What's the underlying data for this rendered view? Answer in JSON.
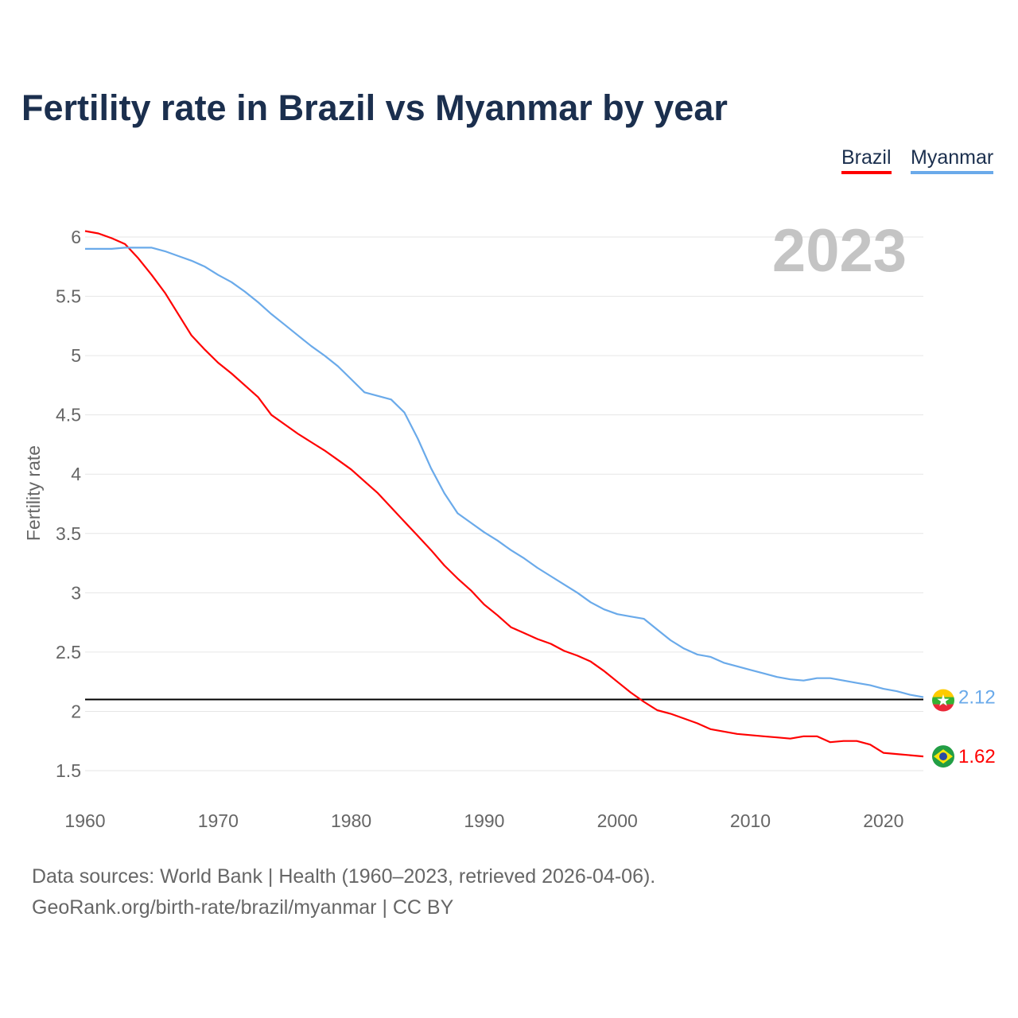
{
  "title": "Fertility rate in Brazil vs Myanmar by year",
  "footer": {
    "line1": "Data sources: World Bank | Health (1960–2023, retrieved 2026-04-06).",
    "line2": "GeoRank.org/birth-rate/brazil/myanmar | CC BY"
  },
  "chart_data": {
    "type": "line",
    "title": "Fertility rate in Brazil vs Myanmar by year",
    "year_label": "2023",
    "xlabel": "",
    "ylabel": "Fertility rate",
    "xlim": [
      1960,
      2023
    ],
    "ylim": [
      1.5,
      6
    ],
    "xticks": [
      1960,
      1970,
      1980,
      1990,
      2000,
      2010,
      2020
    ],
    "yticks": [
      1.5,
      2,
      2.5,
      3,
      3.5,
      4,
      4.5,
      5,
      5.5,
      6
    ],
    "ytick_labels": [
      "1.5",
      "2",
      "2.5",
      "3",
      "3.5",
      "4",
      "4.5",
      "5",
      "5.5",
      "6"
    ],
    "grid": true,
    "legend_position": "top-right",
    "reference_line": 2.1,
    "series": [
      {
        "name": "Brazil",
        "color": "#ff0000",
        "end_label": "1.62",
        "values": [
          6.05,
          6.03,
          5.99,
          5.94,
          5.82,
          5.68,
          5.53,
          5.35,
          5.17,
          5.05,
          4.94,
          4.85,
          4.75,
          4.65,
          4.5,
          4.42,
          4.34,
          4.27,
          4.2,
          4.12,
          4.04,
          3.94,
          3.84,
          3.72,
          3.6,
          3.48,
          3.36,
          3.23,
          3.12,
          3.02,
          2.9,
          2.81,
          2.71,
          2.66,
          2.61,
          2.57,
          2.51,
          2.47,
          2.42,
          2.34,
          2.25,
          2.16,
          2.08,
          2.01,
          1.98,
          1.94,
          1.9,
          1.85,
          1.83,
          1.81,
          1.8,
          1.79,
          1.78,
          1.77,
          1.79,
          1.79,
          1.74,
          1.75,
          1.75,
          1.72,
          1.65,
          1.64,
          1.63,
          1.62
        ]
      },
      {
        "name": "Myanmar",
        "color": "#6aaaea",
        "end_label": "2.12",
        "values": [
          5.9,
          5.9,
          5.9,
          5.91,
          5.91,
          5.91,
          5.88,
          5.84,
          5.8,
          5.75,
          5.68,
          5.62,
          5.54,
          5.45,
          5.35,
          5.26,
          5.17,
          5.08,
          5.0,
          4.91,
          4.8,
          4.69,
          4.66,
          4.63,
          4.52,
          4.3,
          4.05,
          3.84,
          3.67,
          3.59,
          3.51,
          3.44,
          3.36,
          3.29,
          3.21,
          3.14,
          3.07,
          3.0,
          2.92,
          2.86,
          2.82,
          2.8,
          2.78,
          2.69,
          2.6,
          2.53,
          2.48,
          2.46,
          2.41,
          2.38,
          2.35,
          2.32,
          2.29,
          2.27,
          2.26,
          2.28,
          2.28,
          2.26,
          2.24,
          2.22,
          2.19,
          2.17,
          2.14,
          2.12
        ]
      }
    ]
  }
}
